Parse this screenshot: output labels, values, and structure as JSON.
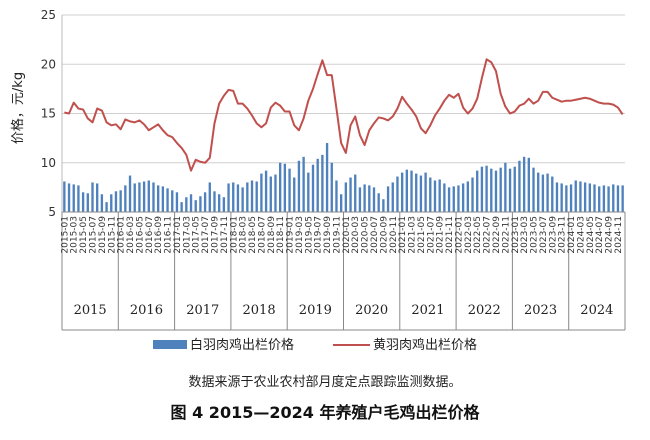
{
  "chart_data": {
    "type": "bar+line",
    "ylabel": "价格，元/kg",
    "ylim": [
      5,
      25
    ],
    "yticks": [
      5,
      10,
      15,
      20,
      25
    ],
    "grid": "horizontal",
    "years": [
      "2015",
      "2016",
      "2017",
      "2018",
      "2019",
      "2020",
      "2021",
      "2022",
      "2023",
      "2024"
    ],
    "start": "2015-01",
    "shown_tick_labels": [
      "2015-01",
      "2015-03",
      "2015-05",
      "2015-07",
      "2015-09",
      "2015-11",
      "2016-01",
      "2016-03",
      "2016-05",
      "2016-07",
      "2016-09",
      "2016-11",
      "2017-01",
      "2017-03",
      "2017-05",
      "2017-07",
      "2017-09",
      "2017-11",
      "2018-01",
      "2018-03",
      "2018-05",
      "2018-07",
      "2018-09",
      "2018-11",
      "2019-01",
      "2019-03",
      "2019-05",
      "2019-07",
      "2019-09",
      "2019-11",
      "2020-01",
      "2020-03",
      "2020-05",
      "2020-07",
      "2020-09",
      "2020-11",
      "2021-01",
      "2021-03",
      "2021-05",
      "2021-07",
      "2021-09",
      "2021-11",
      "2022-01",
      "2022-03",
      "2022-05",
      "2022-07",
      "2022-09",
      "2022-11",
      "2023-01",
      "2023-03",
      "2023-05",
      "2023-07",
      "2023-09",
      "2023-11",
      "2024-01",
      "2024-03",
      "2024-05",
      "2024-07",
      "2024-09",
      "2024-11"
    ],
    "series": [
      {
        "name": "白羽肉鸡出栏价格",
        "type": "bar",
        "color": "#4f81bd",
        "values": [
          8.1,
          7.9,
          7.8,
          7.7,
          7.0,
          6.9,
          8.0,
          7.9,
          6.8,
          6.0,
          6.8,
          7.1,
          7.2,
          7.7,
          8.7,
          7.9,
          8.0,
          8.1,
          8.2,
          8.0,
          7.7,
          7.6,
          7.4,
          7.2,
          7.0,
          6.0,
          6.5,
          6.8,
          6.2,
          6.6,
          7.0,
          8.0,
          7.1,
          6.8,
          6.5,
          7.9,
          8.0,
          7.8,
          7.5,
          8.0,
          8.2,
          8.1,
          8.9,
          9.2,
          8.6,
          8.8,
          10.0,
          9.9,
          9.4,
          8.5,
          10.2,
          10.6,
          9.0,
          9.8,
          10.4,
          10.8,
          12.0,
          10.0,
          8.2,
          6.8,
          8.0,
          8.5,
          8.8,
          7.5,
          7.8,
          7.7,
          7.5,
          6.9,
          6.3,
          7.6,
          8.0,
          8.6,
          9.0,
          9.3,
          9.2,
          8.9,
          8.7,
          9.0,
          8.5,
          8.2,
          8.3,
          7.9,
          7.5,
          7.6,
          7.7,
          7.9,
          8.1,
          8.5,
          9.2,
          9.6,
          9.7,
          9.4,
          9.2,
          9.5,
          10.0,
          9.4,
          9.6,
          10.2,
          10.6,
          10.5,
          9.5,
          9.0,
          8.8,
          8.9,
          8.6,
          8.0,
          7.9,
          7.7,
          7.8,
          8.2,
          8.1,
          8.0,
          7.9,
          7.8,
          7.6,
          7.7,
          7.6,
          7.8,
          7.7,
          7.7
        ]
      },
      {
        "name": "黄羽肉鸡出栏价格",
        "type": "line",
        "color": "#c0504d",
        "values": [
          15.1,
          15.0,
          16.1,
          15.5,
          15.4,
          14.5,
          14.1,
          15.5,
          15.3,
          14.1,
          13.8,
          13.9,
          13.4,
          14.4,
          14.2,
          14.1,
          14.3,
          13.9,
          13.3,
          13.6,
          13.9,
          13.3,
          12.8,
          12.6,
          12.0,
          11.5,
          10.8,
          9.2,
          10.3,
          10.1,
          10.0,
          10.5,
          14.0,
          16.0,
          16.8,
          17.4,
          17.3,
          16.0,
          16.0,
          15.5,
          14.8,
          14.0,
          13.6,
          14.0,
          15.6,
          16.1,
          15.8,
          15.2,
          15.2,
          13.8,
          13.3,
          14.5,
          16.3,
          17.5,
          19.0,
          20.4,
          18.9,
          18.9,
          15.5,
          12.0,
          11.0,
          13.8,
          14.7,
          12.8,
          11.8,
          13.3,
          14.0,
          14.6,
          14.5,
          14.3,
          14.7,
          15.5,
          16.7,
          16.0,
          15.4,
          14.7,
          13.5,
          13.0,
          13.8,
          14.8,
          15.5,
          16.3,
          16.9,
          16.6,
          17.0,
          15.6,
          15.0,
          15.5,
          16.5,
          18.6,
          20.5,
          20.2,
          19.3,
          17.0,
          15.7,
          15.0,
          15.2,
          15.8,
          16.0,
          16.5,
          16.0,
          16.3,
          17.2,
          17.2,
          16.6,
          16.4,
          16.2,
          16.3,
          16.3,
          16.4,
          16.5,
          16.6,
          16.5,
          16.3,
          16.1,
          16.0,
          16.0,
          15.9,
          15.6,
          14.9
        ]
      }
    ]
  },
  "source_note": "数据来源于农业农村部月度定点跟踪监测数据。",
  "figure_title": "图 4 2015—2024 年养殖户毛鸡出栏价格"
}
